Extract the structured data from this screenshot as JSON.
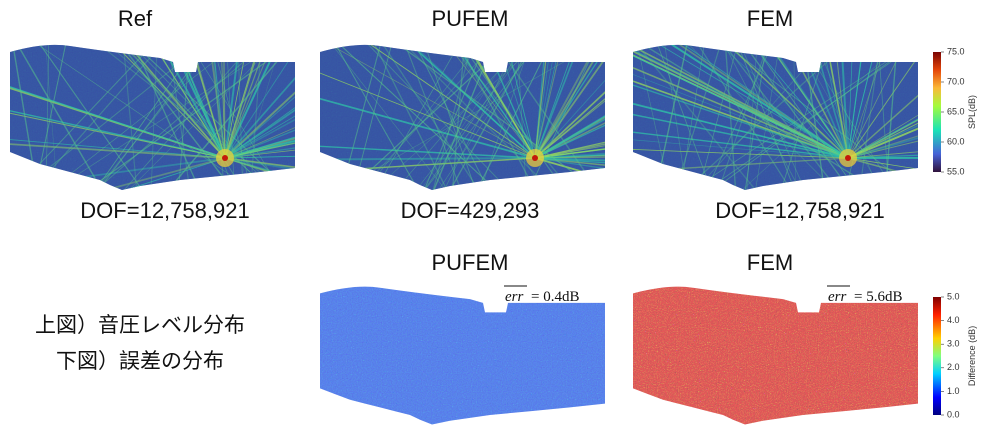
{
  "top": {
    "panels": [
      {
        "title": "Ref",
        "caption": "DOF=12,758,921"
      },
      {
        "title": "PUFEM",
        "caption": "DOF=429,293"
      },
      {
        "title": "FEM",
        "caption": "DOF=12,758,921"
      }
    ],
    "colorbar": {
      "label": "SPL(dB)",
      "ticks": [
        "75.0",
        "70.0",
        "65.0",
        "60.0",
        "55.0"
      ]
    }
  },
  "bottom": {
    "note": [
      "上図）音圧レベル分布",
      "下図）誤差の分布"
    ],
    "panels": [
      {
        "title": "PUFEM",
        "error_symbol": "err",
        "error_value": "= 0.4dB"
      },
      {
        "title": "FEM",
        "error_symbol": "err",
        "error_value": "= 5.6dB"
      }
    ],
    "colorbar": {
      "label": "Difference (dB)",
      "ticks": [
        "5.0",
        "4.0",
        "3.0",
        "2.0",
        "1.0",
        "0.0"
      ]
    }
  }
}
